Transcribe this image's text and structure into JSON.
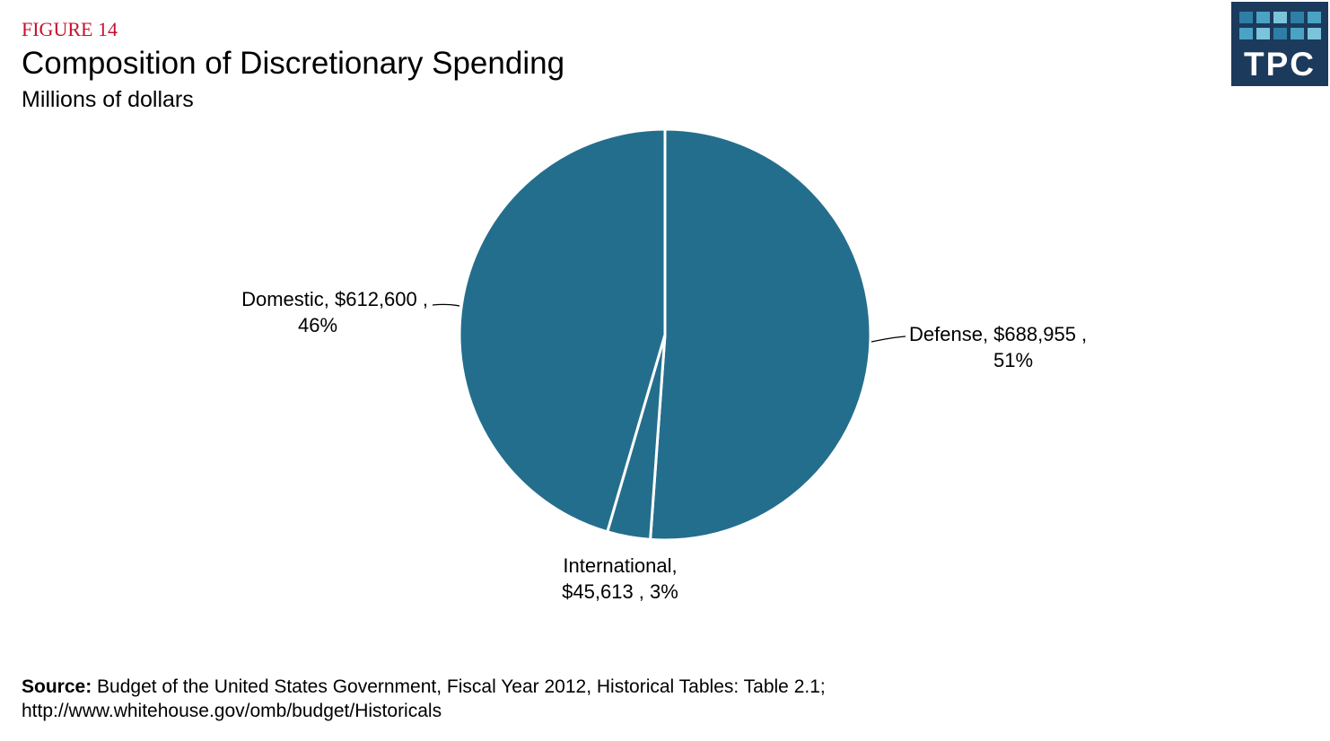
{
  "header": {
    "figure_label": "FIGURE 14",
    "title": "Composition of Discretionary Spending",
    "subtitle": "Millions of dollars"
  },
  "logo": {
    "text": "TPC",
    "colors": {
      "background": "#1c3a5c",
      "squares": [
        "#2e7fa6",
        "#4aa3c4",
        "#7cc3dc"
      ]
    }
  },
  "chart_data": {
    "type": "pie",
    "title": "Composition of Discretionary Spending",
    "subtitle": "Millions of dollars",
    "start_angle": "12 o'clock",
    "direction": "clockwise",
    "slice_color": "#246e8d",
    "separator_color": "#ffffff",
    "slices": [
      {
        "name": "Defense",
        "value": 688955,
        "percent": 51,
        "label_line1": "Defense,  $688,955 ,",
        "label_line2": "51%"
      },
      {
        "name": "International",
        "value": 45613,
        "percent": 3,
        "label_line1": "International,",
        "label_line2": "$45,613 , 3%"
      },
      {
        "name": "Domestic",
        "value": 612600,
        "percent": 46,
        "label_line1": "Domestic,  $612,600 ,",
        "label_line2": "46%"
      }
    ]
  },
  "source": {
    "label": "Source:",
    "line1": " Budget of the United States Government, Fiscal Year 2012, Historical Tables: Table 2.1;",
    "line2": "http://www.whitehouse.gov/omb/budget/Historicals"
  }
}
